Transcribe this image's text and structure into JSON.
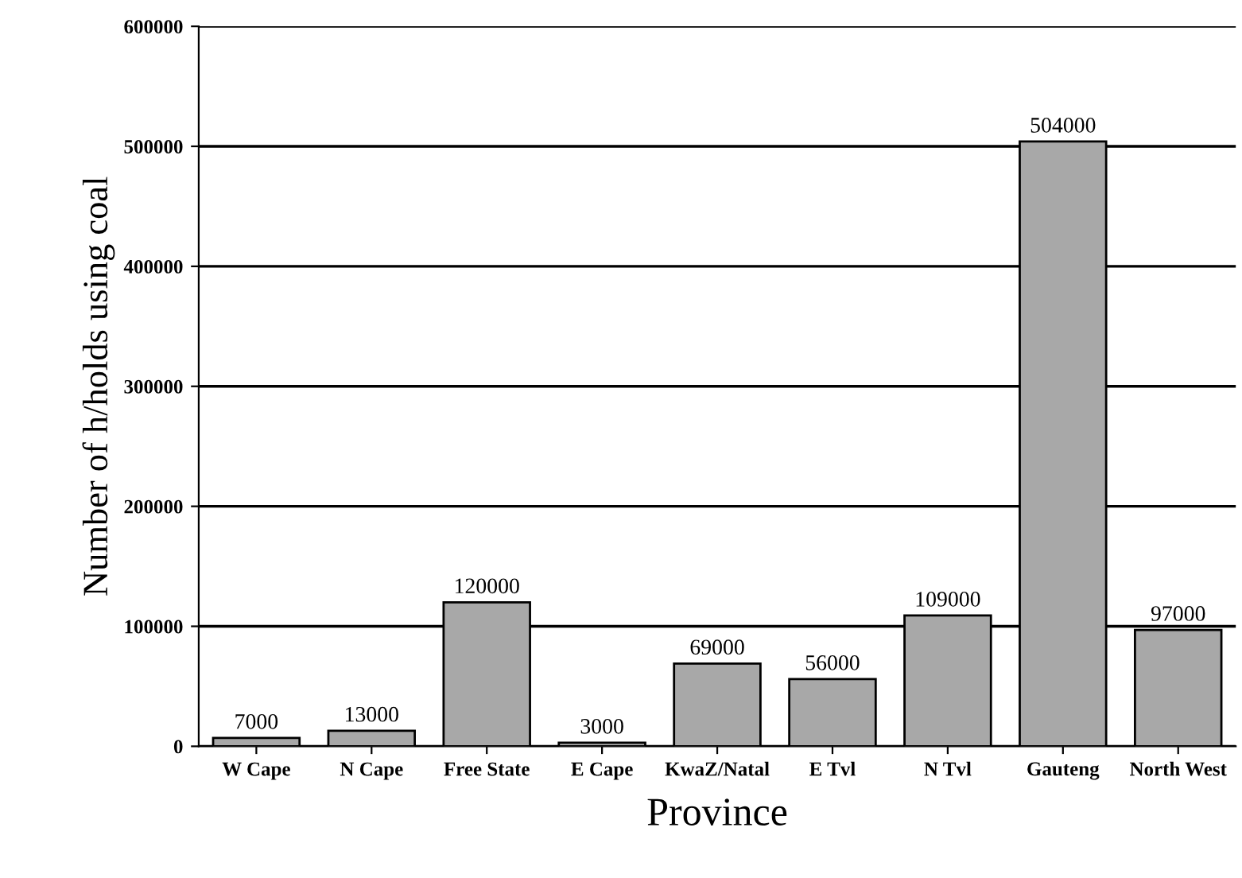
{
  "chart_data": {
    "type": "bar",
    "xlabel": "Province",
    "ylabel": "Number of h/holds using coal",
    "categories": [
      "W Cape",
      "N Cape",
      "Free State",
      "E Cape",
      "KwaZ/Natal",
      "E Tvl",
      "N Tvl",
      "Gauteng",
      "North West"
    ],
    "values": [
      7000,
      13000,
      120000,
      3000,
      69000,
      56000,
      109000,
      504000,
      97000
    ],
    "color": "#a8a8a8",
    "ylim": [
      0,
      600000
    ],
    "yticks": [
      0,
      100000,
      200000,
      300000,
      400000,
      500000,
      600000
    ],
    "grid": "y",
    "data_labels": true
  }
}
